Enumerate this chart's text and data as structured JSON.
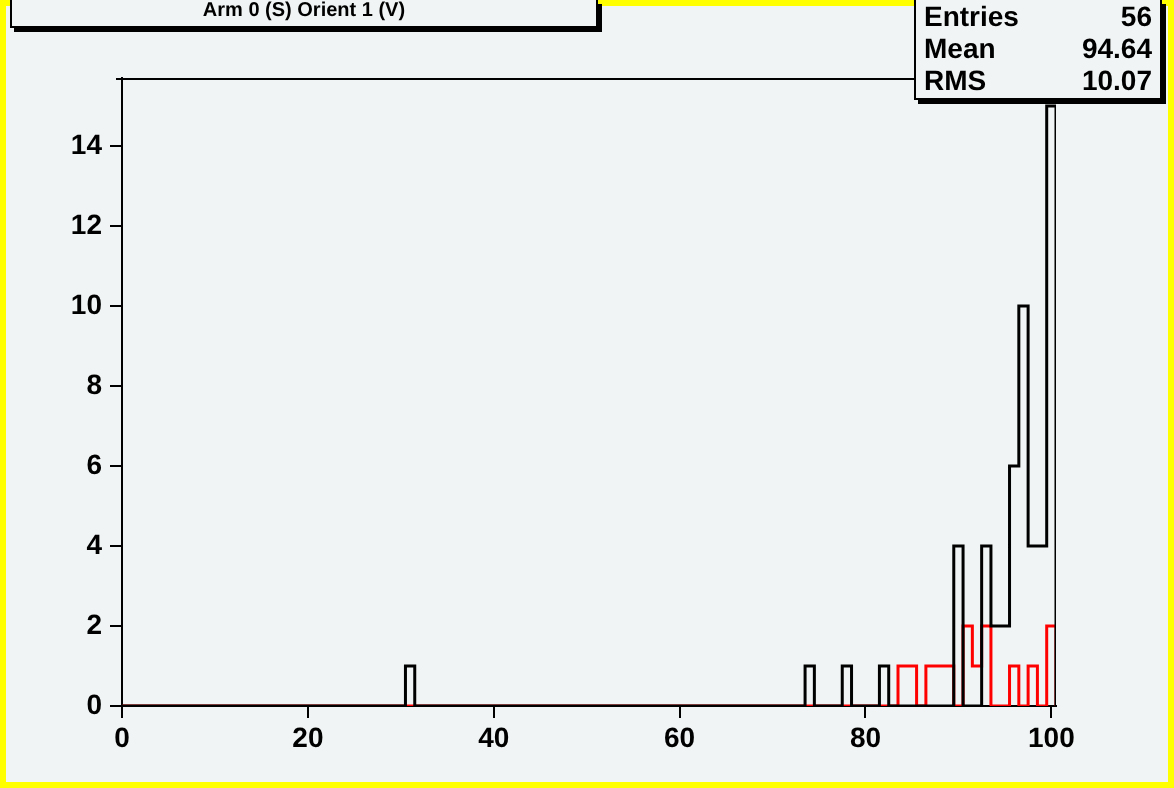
{
  "chart_data": {
    "type": "histogram",
    "title": "Arm 0 (S) Orient 1 (V)",
    "bins": [
      0,
      30.5,
      31.5,
      73.5,
      74.5,
      77.5,
      78.5,
      81.5,
      82.5,
      83.5,
      85.5,
      86.5,
      89.5,
      90.5,
      91.5,
      92.5,
      93.5,
      95.5,
      96.5,
      97.5,
      98.5,
      99.5,
      100.5
    ],
    "series": [
      {
        "color": "#000000",
        "values": [
          0,
          1,
          0,
          1,
          0,
          1,
          0,
          1,
          0,
          0,
          0,
          0,
          4,
          0,
          0,
          4,
          2,
          6,
          10,
          4,
          4,
          15
        ]
      },
      {
        "color": "#ff0000",
        "values": [
          0,
          0,
          0,
          0,
          0,
          0,
          0,
          0,
          0,
          1,
          0,
          1,
          0,
          2,
          1,
          2,
          0,
          1,
          0,
          1,
          0,
          2
        ]
      }
    ],
    "xlim": [
      0,
      100.5
    ],
    "xticks": [
      0,
      20,
      40,
      60,
      80,
      100
    ],
    "ylim": [
      0,
      15.7
    ],
    "yticks": [
      0,
      2,
      4,
      6,
      8,
      10,
      12,
      14
    ],
    "annotations": [
      "Entries 56",
      "Mean 94.64",
      "RMS 10.07"
    ]
  }
}
